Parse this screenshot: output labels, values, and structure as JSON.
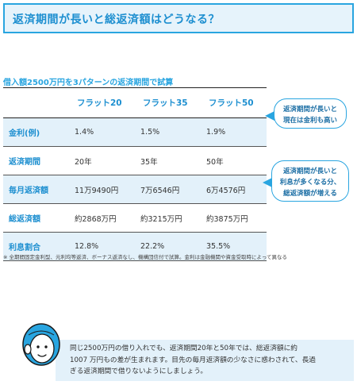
{
  "header": {
    "title": "返済期間が長いと総返済額はどうなる？"
  },
  "table": {
    "caption": "借入額2500万円を3パターンの返済期間で試算",
    "columns": [
      "フラット20",
      "フラット35",
      "フラット50"
    ],
    "rows": [
      {
        "label": "金利(例)",
        "values": [
          "1.4%",
          "1.5%",
          "1.9%"
        ]
      },
      {
        "label": "返済期間",
        "values": [
          "20年",
          "35年",
          "50年"
        ]
      },
      {
        "label": "毎月返済額",
        "values": [
          "11万9490円",
          "7万6546円",
          "6万4576円"
        ]
      },
      {
        "label": "総返済額",
        "values": [
          "約2868万円",
          "約3215万円",
          "約3875万円"
        ]
      },
      {
        "label": "利息割合",
        "values": [
          "12.8%",
          "22.2%",
          "35.5%"
        ]
      }
    ]
  },
  "callouts": [
    {
      "lines": [
        "返済期間が長いと",
        "現在は金利も高い"
      ]
    },
    {
      "lines": [
        "返済期間が長いと",
        "利息が多くなる分、",
        "総返済額が増える"
      ]
    }
  ],
  "footnote": "※ 全期間固定金利型、元利均等返済、ボーナス返済なし、機構団信付で試算。金利は金融機関や資金受取時によって異なる",
  "comment": {
    "lines": [
      "同じ2500万円の借り入れでも、返済期間20年と50年では、総返済額に約",
      "1007 万円もの差が生まれます。目先の毎月返済額の少なさに惑わされて、長過",
      "ぎる返済期間で借りないようにしましょう。"
    ]
  },
  "colors": {
    "accent": "#29a5e0",
    "title_text": "#1d8fd0",
    "shade": "#e3f1fa",
    "header_bg": "#e6f3fb"
  }
}
